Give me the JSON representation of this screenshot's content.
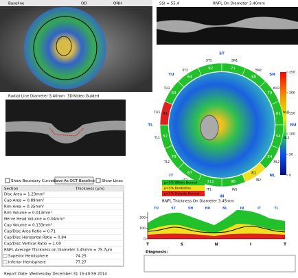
{
  "header": {
    "baseline": "Baseline",
    "eye": "OD",
    "mode": "ONH"
  },
  "scan": {
    "ssi": "SSI = 55.4",
    "rnfl_title": "RNFL On Diameter 3.40mm",
    "radial_title": "Radial Line Diameter 3.40mm",
    "guide": "3D/Video Guided"
  },
  "sectors": [
    {
      "name": "ST1",
      "value": 92,
      "color": "#22c02a"
    },
    {
      "name": "SN1",
      "value": 71,
      "color": "#22c02a"
    },
    {
      "name": "SN2",
      "value": 80,
      "color": "#22c02a"
    },
    {
      "name": "NU2",
      "value": 79,
      "color": "#22c02a"
    },
    {
      "name": "NU1",
      "value": 61,
      "color": "#22c02a"
    },
    {
      "name": "NL1",
      "value": 54,
      "color": "#22c02a"
    },
    {
      "name": "NL2",
      "value": 54,
      "color": "#22c02a"
    },
    {
      "name": "IN2",
      "value": 81,
      "color": "#f0e020"
    },
    {
      "name": "IN1",
      "value": 98,
      "color": "#22c02a"
    },
    {
      "name": "IT1",
      "value": 112,
      "color": "#22c02a"
    },
    {
      "name": "IT2",
      "value": 87,
      "color": "#22c02a"
    },
    {
      "name": "TL2",
      "value": 79,
      "color": "#22c02a"
    },
    {
      "name": "TL1",
      "value": 57,
      "color": "#22c02a"
    },
    {
      "name": "TU1",
      "value": 41,
      "color": "#e02020"
    },
    {
      "name": "TU2",
      "value": 63,
      "color": "#22c02a"
    },
    {
      "name": "ST2",
      "value": 64,
      "color": "#22c02a"
    }
  ],
  "quadrants": [
    "ST",
    "SN",
    "NU",
    "NL",
    "IN",
    "IT",
    "TL",
    "TU"
  ],
  "color_scale": {
    "lim": [
      0,
      250
    ],
    "ticks": [
      250,
      200,
      150,
      100,
      50,
      0
    ]
  },
  "legend": [
    "p>5% Within Normal",
    "p<5% Borderline",
    "p<1% Outside Normal"
  ],
  "thickness_title": "RNFL Thickness On Diameter 3.45mm",
  "controls": {
    "boundary": "Show Boundary Curves",
    "save": "Save As OCT Baseline",
    "lines": "Show Lines"
  },
  "table": {
    "header": [
      "Section",
      "Thickness (µm)"
    ],
    "rows": [
      [
        "Disc Area = 1.23mm²"
      ],
      [
        "Cup Area = 0.89mm²"
      ],
      [
        "Rim Area = 0.35mm²"
      ],
      [
        "Rim Volume = 0.013mm³"
      ],
      [
        "Nerve Head Volume = 0.04mm³"
      ],
      [
        "Cup Volume = 0.133mm³"
      ],
      [
        "Cup/Disc Area Ratio = 0.71"
      ],
      [
        "Cup/Disc Horizontal Ratio = 0.84"
      ],
      [
        "Cup/Disc Vertical Ratio = 1.00"
      ],
      [
        "RNFL Average Thickness on Diameter 3.45mm = 75.7µm"
      ],
      [
        "Superior Hemisphere",
        "74.25"
      ],
      [
        "Inferior Hemisphere",
        "77.27"
      ]
    ]
  },
  "plot": {
    "ylim": [
      0,
      250
    ],
    "yticks": [
      0,
      100,
      200
    ],
    "top_labels": [
      "TU",
      "ST",
      "SN",
      "NU",
      "NL",
      "IN",
      "IT",
      "TL"
    ],
    "bottom_labels": [
      "T",
      "S",
      "N",
      "I",
      "T"
    ],
    "values": [
      70,
      75,
      85,
      100,
      110,
      105,
      90,
      75,
      65,
      60,
      58,
      60,
      65,
      80,
      100,
      115,
      120,
      110,
      95,
      80,
      70,
      65
    ]
  },
  "diagnosis": "Diagnosis:",
  "report_date": "Report Date: Wednesday December 31 15:40:59 2014"
}
